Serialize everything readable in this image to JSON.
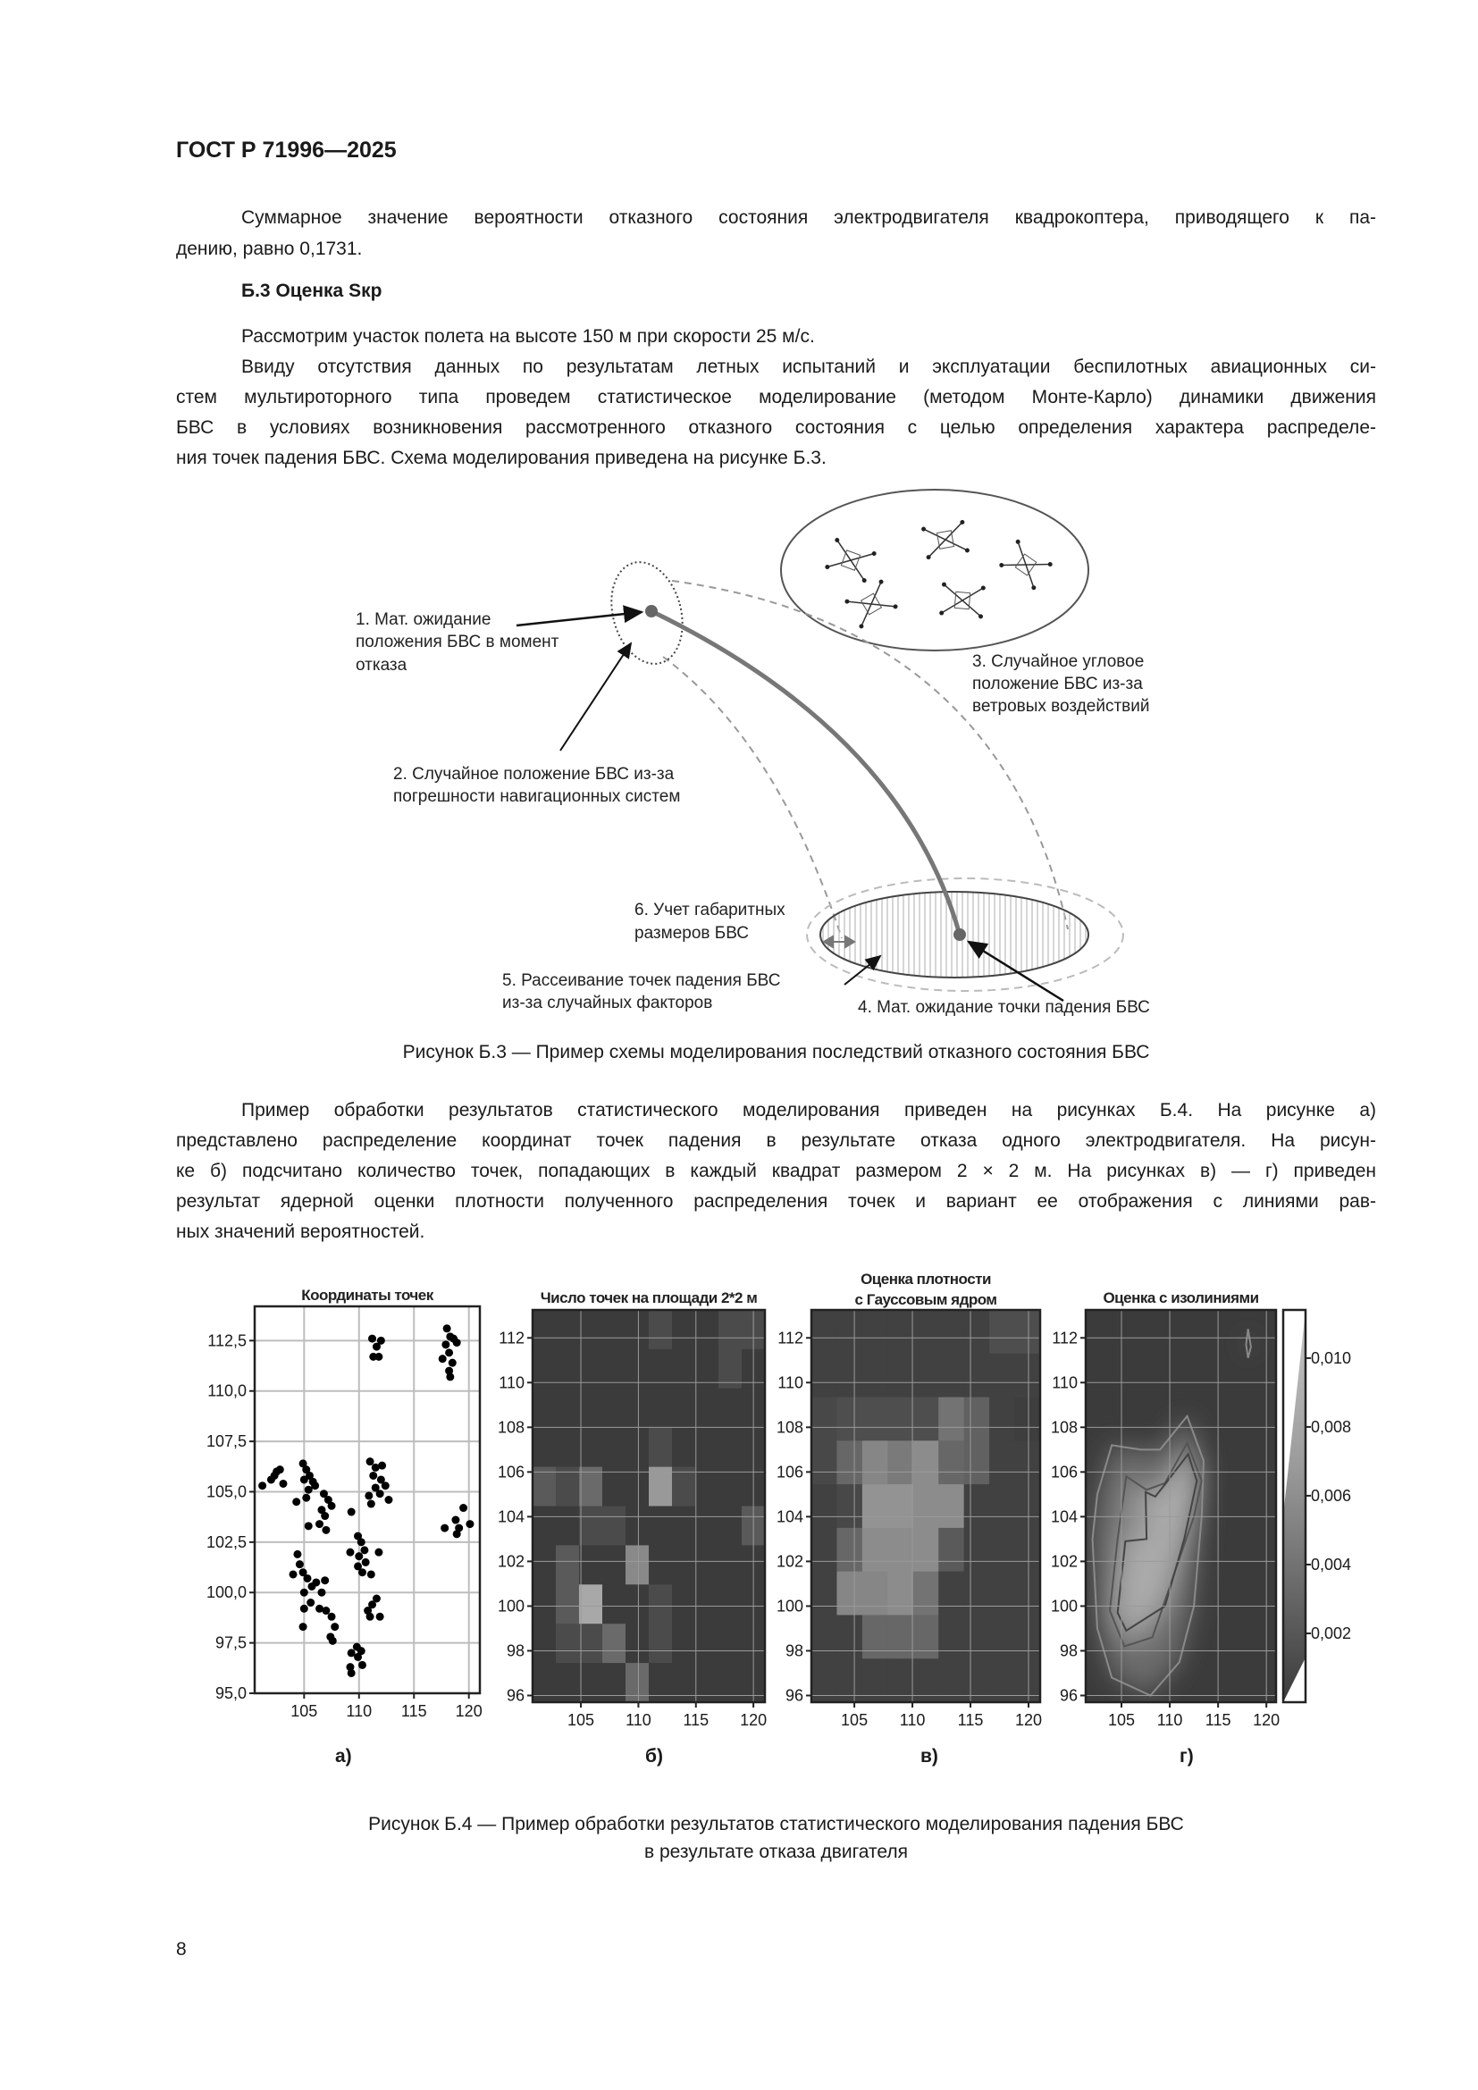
{
  "header": {
    "doc_id": "ГОСТ Р 71996—2025"
  },
  "para1": [
    "Суммарное значение вероятности отказного состояния электродвигателя квадрокоптера, приводящего к па-",
    "дению, равно 0,1731."
  ],
  "section_title": "Б.3 Оценка Sкр",
  "para2": [
    "Рассмотрим участок полета на высоте 150 м при скорости 25 м/с."
  ],
  "para3": [
    "Ввиду отсутствия данных по результатам летных испытаний и эксплуатации беспилотных авиационных си-",
    "стем мультироторного типа проведем статистическое моделирование (методом Монте-Карло) динамики движения",
    "БВС в условиях возникновения рассмотренного отказного состояния с целью определения характера распределе-",
    "ния точек падения БВС. Схема моделирования приведена на рисунке Б.3."
  ],
  "diagram": {
    "label1": [
      "1. Мат. ожидание",
      "положения БВС в момент",
      "отказа"
    ],
    "label2": [
      "2. Случайное положение БВС из-за",
      "погрешности навигационных систем"
    ],
    "label3": [
      "3. Случайное угловое",
      "положение БВС из-за",
      "ветровых воздействий"
    ],
    "label4": "4. Мат. ожидание точки падения БВС",
    "label5": [
      "5. Рассеивание точек падения БВС",
      "из-за случайных факторов"
    ],
    "label6": [
      "6. Учет габаритных",
      "размеров БВС"
    ],
    "icons": [
      "quadcopter-icon",
      "quadcopter-icon",
      "quadcopter-icon",
      "quadcopter-icon",
      "quadcopter-icon"
    ]
  },
  "caption_b3": "Рисунок Б.3 — Пример схемы моделирования последствий отказного состояния БВС",
  "para4": [
    "Пример обработки результатов статистического моделирования приведен на рисунках Б.4. На рисунке а)",
    "представлено распределение координат точек падения в результате отказа одного электродвигателя. На рисун-",
    "ке б) подсчитано количество точек, попадающих в каждый квадрат размером 2 × 2 м. На рисунках в) — г) приведен",
    "результат ядерной оценки плотности полученного распределения точек и вариант ее отображения с линиями рав-",
    "ных значений вероятностей."
  ],
  "chart_data": [
    {
      "type": "scatter",
      "panel_label": "а)",
      "title": "Координаты точек",
      "xlim": [
        100.5,
        121
      ],
      "ylim": [
        95,
        114.2
      ],
      "grid": true,
      "xticks": [
        105,
        110,
        115,
        120
      ],
      "xtick_labels": [
        "105",
        "110",
        "115",
        "120"
      ],
      "yticks": [
        95,
        97.5,
        100,
        102.5,
        105,
        107.5,
        110,
        112.5
      ],
      "ytick_labels": [
        "95,0",
        "97,5",
        "100,0",
        "102,5",
        "105,0",
        "107,5",
        "110,0",
        "112,5"
      ],
      "points": [
        [
          111.2,
          112.6
        ],
        [
          111.6,
          112.2
        ],
        [
          112.0,
          112.5
        ],
        [
          111.3,
          111.7
        ],
        [
          111.8,
          111.7
        ],
        [
          118.0,
          113.1
        ],
        [
          118.3,
          112.7
        ],
        [
          118.6,
          112.6
        ],
        [
          117.9,
          112.3
        ],
        [
          118.9,
          112.4
        ],
        [
          118.2,
          111.9
        ],
        [
          117.6,
          111.6
        ],
        [
          118.5,
          111.4
        ],
        [
          118.2,
          111.0
        ],
        [
          118.3,
          110.7
        ],
        [
          101.2,
          105.3
        ],
        [
          102.0,
          105.6
        ],
        [
          102.5,
          106.0
        ],
        [
          102.8,
          106.1
        ],
        [
          103.1,
          105.4
        ],
        [
          102.3,
          105.8
        ],
        [
          104.9,
          106.4
        ],
        [
          105.2,
          106.1
        ],
        [
          105.5,
          105.8
        ],
        [
          105.0,
          105.6
        ],
        [
          105.8,
          105.5
        ],
        [
          106.0,
          105.3
        ],
        [
          105.4,
          105.1
        ],
        [
          105.2,
          104.7
        ],
        [
          104.3,
          104.5
        ],
        [
          106.8,
          104.9
        ],
        [
          107.2,
          104.6
        ],
        [
          106.6,
          104.1
        ],
        [
          107.5,
          104.3
        ],
        [
          106.9,
          103.8
        ],
        [
          106.4,
          103.4
        ],
        [
          107.0,
          103.1
        ],
        [
          105.4,
          103.3
        ],
        [
          109.3,
          104.0
        ],
        [
          111.0,
          106.5
        ],
        [
          111.5,
          106.2
        ],
        [
          112.1,
          106.3
        ],
        [
          111.3,
          105.8
        ],
        [
          112.0,
          105.6
        ],
        [
          111.5,
          105.2
        ],
        [
          112.4,
          105.3
        ],
        [
          111.9,
          104.9
        ],
        [
          112.7,
          104.6
        ],
        [
          111.1,
          104.4
        ],
        [
          110.9,
          104.8
        ],
        [
          119.5,
          104.2
        ],
        [
          118.8,
          103.6
        ],
        [
          119.1,
          103.2
        ],
        [
          118.9,
          102.9
        ],
        [
          120.1,
          103.4
        ],
        [
          117.8,
          103.2
        ],
        [
          109.9,
          102.8
        ],
        [
          110.2,
          102.5
        ],
        [
          110.5,
          102.1
        ],
        [
          110.0,
          101.8
        ],
        [
          110.6,
          101.5
        ],
        [
          109.9,
          101.3
        ],
        [
          110.3,
          101.0
        ],
        [
          111.1,
          100.9
        ],
        [
          109.2,
          102.0
        ],
        [
          111.8,
          102.0
        ],
        [
          104.4,
          101.9
        ],
        [
          104.6,
          101.4
        ],
        [
          104.9,
          101.0
        ],
        [
          105.3,
          100.7
        ],
        [
          105.7,
          100.3
        ],
        [
          104.0,
          100.9
        ],
        [
          106.1,
          100.5
        ],
        [
          105.0,
          100.0
        ],
        [
          105.6,
          99.5
        ],
        [
          105.0,
          99.2
        ],
        [
          106.9,
          100.6
        ],
        [
          106.6,
          100.0
        ],
        [
          104.9,
          98.3
        ],
        [
          106.4,
          99.2
        ],
        [
          107.0,
          99.1
        ],
        [
          107.5,
          98.8
        ],
        [
          107.8,
          98.3
        ],
        [
          107.4,
          97.8
        ],
        [
          107.6,
          97.6
        ],
        [
          111.6,
          99.7
        ],
        [
          111.2,
          99.4
        ],
        [
          110.8,
          99.1
        ],
        [
          111.0,
          98.8
        ],
        [
          111.9,
          98.8
        ],
        [
          109.3,
          97.0
        ],
        [
          109.8,
          97.3
        ],
        [
          110.2,
          97.1
        ],
        [
          109.9,
          96.8
        ],
        [
          109.2,
          96.3
        ],
        [
          109.3,
          96.0
        ],
        [
          110.3,
          96.4
        ]
      ]
    },
    {
      "type": "heatmap",
      "panel_label": "б)",
      "title": "Число точек на площади 2*2 м",
      "xlim": [
        100.8,
        121
      ],
      "ylim": [
        95.7,
        113.25
      ],
      "grid": true,
      "xticks": [
        105,
        110,
        115,
        120
      ],
      "xtick_labels": [
        "105",
        "110",
        "115",
        "120"
      ],
      "yticks": [
        96,
        98,
        100,
        102,
        104,
        106,
        108,
        110,
        112
      ],
      "ytick_labels": [
        "96",
        "98",
        "100",
        "102",
        "104",
        "106",
        "108",
        "110",
        "112"
      ],
      "vmax": 8,
      "values_top_to_bottom": [
        [
          0,
          0,
          0,
          0,
          0,
          1,
          0,
          0,
          1,
          1
        ],
        [
          0,
          0,
          0,
          0,
          0,
          0,
          0,
          0,
          1,
          0
        ],
        [
          0,
          0,
          0,
          0,
          0,
          0,
          0,
          0,
          0,
          0
        ],
        [
          0,
          0,
          0,
          0,
          0,
          1,
          0,
          0,
          0,
          0
        ],
        [
          2,
          1,
          3,
          0,
          0,
          6,
          1,
          0,
          0,
          0
        ],
        [
          0,
          0,
          1,
          1,
          0,
          0,
          0,
          0,
          0,
          2
        ],
        [
          0,
          2,
          0,
          0,
          5,
          0,
          0,
          0,
          0,
          0
        ],
        [
          0,
          2,
          7,
          0,
          0,
          1,
          0,
          0,
          0,
          0
        ],
        [
          0,
          1,
          1,
          3,
          0,
          1,
          0,
          0,
          0,
          0
        ],
        [
          0,
          0,
          0,
          0,
          3,
          0,
          0,
          0,
          0,
          0
        ]
      ]
    },
    {
      "type": "heatmap",
      "panel_label": "в)",
      "title": [
        "Оценка плотности",
        "с Гауссовым ядром"
      ],
      "xlim": [
        101.3,
        121
      ],
      "ylim": [
        95.7,
        113.25
      ],
      "grid": true,
      "xticks": [
        105,
        110,
        115,
        120
      ],
      "xtick_labels": [
        "105",
        "110",
        "115",
        "120"
      ],
      "yticks": [
        96,
        98,
        100,
        102,
        104,
        106,
        108,
        110,
        112
      ],
      "ytick_labels": [
        "96",
        "98",
        "100",
        "102",
        "104",
        "106",
        "108",
        "110",
        "112"
      ],
      "vmax": 1,
      "values_top_to_bottom": [
        [
          0.05,
          0.05,
          0.05,
          0.05,
          0.05,
          0.05,
          0.05,
          0.15,
          0.15
        ],
        [
          0.05,
          0.05,
          0.05,
          0.05,
          0.05,
          0.05,
          0.05,
          0.05,
          0.05
        ],
        [
          0.1,
          0.15,
          0.15,
          0.15,
          0.15,
          0.45,
          0.3,
          0.05,
          0.02
        ],
        [
          0.1,
          0.35,
          0.6,
          0.5,
          0.65,
          0.35,
          0.3,
          0.05,
          0.05
        ],
        [
          0.05,
          0.1,
          0.7,
          0.7,
          0.65,
          0.65,
          0.05,
          0.05,
          0.05
        ],
        [
          0.05,
          0.35,
          0.65,
          0.65,
          0.65,
          0.25,
          0.05,
          0.05,
          0.05
        ],
        [
          0.05,
          0.6,
          0.6,
          0.65,
          0.45,
          0.05,
          0.05,
          0.05,
          0.05
        ],
        [
          0.05,
          0.05,
          0.35,
          0.35,
          0.35,
          0.05,
          0.05,
          0.05,
          0.05
        ],
        [
          0.05,
          0.05,
          0.05,
          0.05,
          0.05,
          0.05,
          0.05,
          0.05,
          0.05
        ]
      ]
    },
    {
      "type": "contour",
      "panel_label": "г)",
      "title": "Оценка с изолиниями",
      "xlim": [
        101.3,
        121
      ],
      "ylim": [
        95.7,
        113.25
      ],
      "grid": true,
      "xticks": [
        105,
        110,
        115,
        120
      ],
      "xtick_labels": [
        "105",
        "110",
        "115",
        "120"
      ],
      "yticks": [
        96,
        98,
        100,
        102,
        104,
        106,
        108,
        110,
        112
      ],
      "ytick_labels": [
        "96",
        "98",
        "100",
        "102",
        "104",
        "106",
        "108",
        "110",
        "112"
      ],
      "colorbar": {
        "range": [
          0,
          0.0114
        ],
        "ticks": [
          0.002,
          0.004,
          0.006,
          0.008,
          0.01
        ],
        "tick_labels": [
          "0,002",
          "0,004",
          "0,006",
          "0,008",
          "0,010"
        ]
      },
      "contours": [
        {
          "level": 0.002,
          "points": [
            [
              102.5,
              105
            ],
            [
              104,
              107.2
            ],
            [
              107,
              107
            ],
            [
              109,
              107
            ],
            [
              111.8,
              108.5
            ],
            [
              113.5,
              106.5
            ],
            [
              113.3,
              104
            ],
            [
              112.5,
              100
            ],
            [
              111,
              97.5
            ],
            [
              108,
              96
            ],
            [
              104,
              96.8
            ],
            [
              102.5,
              99
            ],
            [
              102,
              103
            ]
          ]
        },
        {
          "level": 0.004,
          "points": [
            [
              103.8,
              99.8
            ],
            [
              105.3,
              98.2
            ],
            [
              108.2,
              98.6
            ],
            [
              110.5,
              101.5
            ],
            [
              112.5,
              104
            ],
            [
              113.3,
              105.6
            ],
            [
              111.8,
              107.3
            ],
            [
              109.5,
              105.5
            ],
            [
              107.6,
              105.2
            ],
            [
              105.5,
              105.8
            ],
            [
              104.6,
              103
            ]
          ]
        },
        {
          "level": 0.006,
          "points": [
            [
              105.5,
              98.9
            ],
            [
              109.5,
              100
            ],
            [
              111.5,
              103
            ],
            [
              112.8,
              105.6
            ],
            [
              111.9,
              106.8
            ],
            [
              109.6,
              105.5
            ],
            [
              108.5,
              104.9
            ],
            [
              107.5,
              105.1
            ],
            [
              107.6,
              103.0
            ],
            [
              105.4,
              102.9
            ],
            [
              104.6,
              99.7
            ]
          ]
        },
        {
          "level": 0.002,
          "points": [
            [
              118.1,
              112.4
            ],
            [
              118.4,
              111.6
            ],
            [
              118.1,
              111.1
            ],
            [
              117.9,
              111.7
            ]
          ]
        }
      ]
    }
  ],
  "caption_b4": [
    "Рисунок Б.4 — Пример обработки результатов статистического моделирования падения БВС",
    "в результате отказа двигателя"
  ],
  "page_number": "8"
}
